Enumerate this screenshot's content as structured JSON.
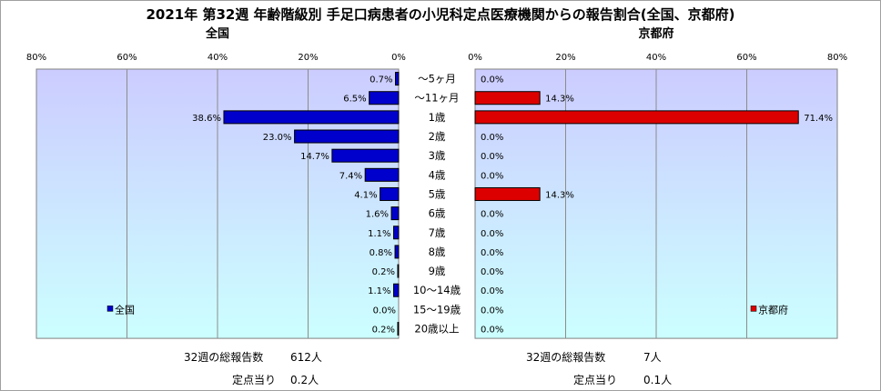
{
  "chart_data": {
    "type": "bar",
    "title": "2021年 第32週 年齢階級別 手足口病患者の小児科定点医療機関からの報告割合(全国、京都府)",
    "categories": [
      "～5ヶ月",
      "～11ヶ月",
      "1歳",
      "2歳",
      "3歳",
      "4歳",
      "5歳",
      "6歳",
      "7歳",
      "8歳",
      "9歳",
      "10～14歳",
      "15～19歳",
      "20歳以上"
    ],
    "xlim": [
      0,
      80
    ],
    "x_ticks": [
      "0%",
      "20%",
      "40%",
      "60%",
      "80%"
    ],
    "series": [
      {
        "name": "全国",
        "panel_title": "全国",
        "color": "#0000cc",
        "values": [
          0.7,
          6.5,
          38.6,
          23.0,
          14.7,
          7.4,
          4.1,
          1.6,
          1.1,
          0.8,
          0.2,
          1.1,
          0.0,
          0.2
        ],
        "labels": [
          "0.7%",
          "6.5%",
          "38.6%",
          "23.0%",
          "14.7%",
          "7.4%",
          "4.1%",
          "1.6%",
          "1.1%",
          "0.8%",
          "0.2%",
          "1.1%",
          "0.0%",
          "0.2%"
        ]
      },
      {
        "name": "京都府",
        "panel_title": "京都府",
        "color": "#dd0000",
        "values": [
          0.0,
          14.3,
          71.4,
          0.0,
          0.0,
          0.0,
          14.3,
          0.0,
          0.0,
          0.0,
          0.0,
          0.0,
          0.0,
          0.0
        ],
        "labels": [
          "0.0%",
          "14.3%",
          "71.4%",
          "0.0%",
          "0.0%",
          "0.0%",
          "14.3%",
          "0.0%",
          "0.0%",
          "0.0%",
          "0.0%",
          "0.0%",
          "0.0%",
          "0.0%"
        ]
      }
    ],
    "legend": [
      "全国",
      "京都府"
    ],
    "grid": true
  },
  "footer": {
    "national": {
      "total_label": "32週の総報告数",
      "total_value": "612人",
      "per_label": "定点当り",
      "per_value": "0.2人"
    },
    "prefecture": {
      "total_label": "32週の総報告数",
      "total_value": "7人",
      "per_label": "定点当り",
      "per_value": "0.1人"
    }
  }
}
